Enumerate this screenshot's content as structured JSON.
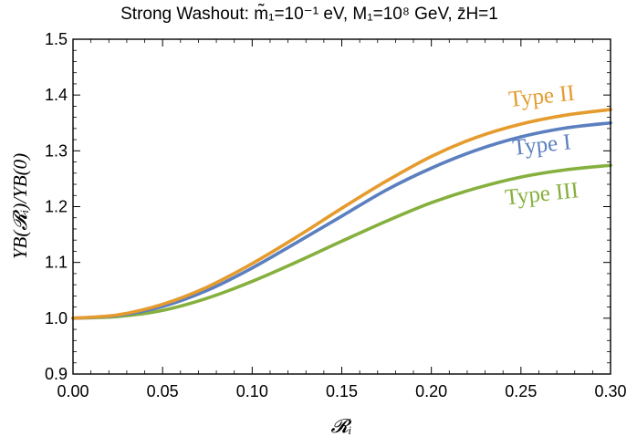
{
  "chart_data": {
    "type": "line",
    "title": "Strong Washout: m̃₁=10⁻¹ eV, M₁=10⁸ GeV, z̄H=1",
    "xlabel": "𝓡ᵢ",
    "ylabel": "YB(𝓡ᵢ)/YB(0)",
    "xlim": [
      0.0,
      0.3
    ],
    "ylim": [
      0.9,
      1.5
    ],
    "x_ticks": [
      0.0,
      0.05,
      0.1,
      0.15,
      0.2,
      0.25,
      0.3
    ],
    "x_tick_labels": [
      "0.00",
      "0.05",
      "0.10",
      "0.15",
      "0.20",
      "0.25",
      "0.30"
    ],
    "y_ticks": [
      0.9,
      1.0,
      1.1,
      1.2,
      1.3,
      1.4,
      1.5
    ],
    "y_tick_labels": [
      "0.9",
      "1.0",
      "1.1",
      "1.2",
      "1.3",
      "1.4",
      "1.5"
    ],
    "grid": false,
    "x": [
      0.0,
      0.025,
      0.05,
      0.075,
      0.1,
      0.125,
      0.15,
      0.175,
      0.2,
      0.225,
      0.25,
      0.275,
      0.3
    ],
    "series": [
      {
        "name": "Type II",
        "color": "#e59b2e",
        "values": [
          1.0,
          1.006,
          1.025,
          1.056,
          1.098,
          1.146,
          1.197,
          1.246,
          1.29,
          1.324,
          1.348,
          1.364,
          1.374
        ]
      },
      {
        "name": "Type I",
        "color": "#5b7fbf",
        "values": [
          1.0,
          1.005,
          1.021,
          1.05,
          1.09,
          1.136,
          1.183,
          1.23,
          1.269,
          1.301,
          1.325,
          1.341,
          1.35
        ]
      },
      {
        "name": "Type III",
        "color": "#86b03e",
        "values": [
          1.0,
          1.003,
          1.014,
          1.036,
          1.066,
          1.101,
          1.138,
          1.174,
          1.207,
          1.233,
          1.253,
          1.266,
          1.274
        ]
      }
    ]
  }
}
